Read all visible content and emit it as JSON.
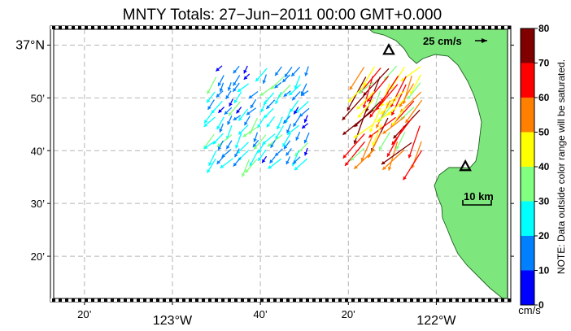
{
  "title": "MNTY Totals: 27−Jun−2011 00:00 GMT+0.000",
  "lat_labels": [
    {
      "lat": 37.0,
      "label": "37°N",
      "major": true
    },
    {
      "lat": 36.8333,
      "label": "50’",
      "major": false
    },
    {
      "lat": 36.6667,
      "label": "40’",
      "major": false
    },
    {
      "lat": 36.5,
      "label": "30’",
      "major": false
    },
    {
      "lat": 36.3333,
      "label": "20’",
      "major": false
    }
  ],
  "lon_labels": [
    {
      "lon": -123.3333,
      "label": "20’",
      "major": false
    },
    {
      "lon": -123.0,
      "label": "123°W",
      "major": true
    },
    {
      "lon": -122.6667,
      "label": "40’",
      "major": false
    },
    {
      "lon": -122.3333,
      "label": "20’",
      "major": false
    },
    {
      "lon": -122.0,
      "label": "122°W",
      "major": true
    }
  ],
  "map_extent": {
    "lon_min": -123.45,
    "lon_max": -121.73,
    "lat_min": 36.2,
    "lat_max": 37.05
  },
  "colors": {
    "land": "#7de67d",
    "grid": "#b4b4b4",
    "station_marker": "#000000"
  },
  "stations": [
    {
      "lon": -122.18,
      "lat": 36.985
    },
    {
      "lon": -121.89,
      "lat": 36.618
    }
  ],
  "velocity_reference": {
    "label": "25 cm/s",
    "speed": 25
  },
  "scale_bar": {
    "label": "10 km",
    "length_km": 10
  },
  "colorbar": {
    "unit": "cm/s",
    "ticks": [
      "0",
      "10",
      "20",
      "30",
      "40",
      "50",
      "60",
      "70",
      "80"
    ],
    "colors": [
      "#0000ff",
      "#0080ff",
      "#00ffff",
      "#80ff80",
      "#ffff00",
      "#ff8000",
      "#ff0000",
      "#800000"
    ],
    "note": "NOTE: Data outside color range will be saturated."
  },
  "current_fields": [
    {
      "name": "offshore",
      "lon_min": -122.84,
      "lon_max": -122.47,
      "lat_min": 36.62,
      "lat_max": 36.93,
      "step_lon": 0.032,
      "step_lat": 0.026,
      "direction_deg": 218,
      "speed_min": 8,
      "speed_max": 34
    },
    {
      "name": "bay",
      "lon_min": -122.27,
      "lon_max": -122.04,
      "lat_min": 36.66,
      "lat_max": 36.93,
      "step_lon": 0.03,
      "step_lat": 0.026,
      "direction_deg": 215,
      "speed_min": 30,
      "speed_max": 80
    }
  ]
}
